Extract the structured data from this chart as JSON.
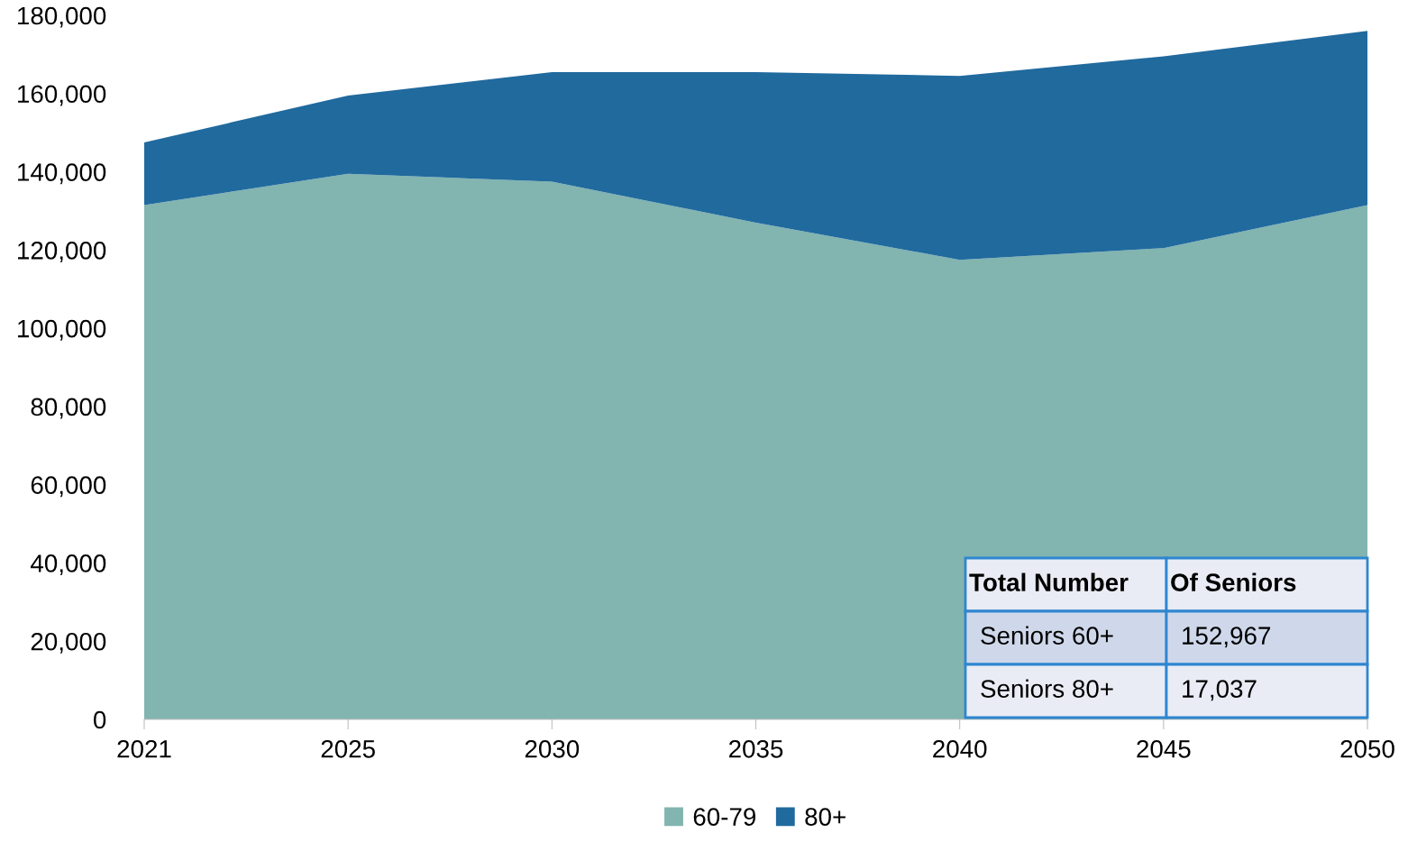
{
  "chart_data": {
    "type": "area",
    "stacked": true,
    "categories": [
      "2021",
      "2025",
      "2030",
      "2035",
      "2040",
      "2045",
      "2050"
    ],
    "series": [
      {
        "name": "60-79",
        "color": "#82b4b0",
        "values": [
          131500,
          139500,
          137500,
          127000,
          117500,
          120500,
          131500
        ]
      },
      {
        "name": "80+",
        "color": "#206a9e",
        "values": [
          16000,
          20000,
          28000,
          38500,
          47000,
          49000,
          44500
        ]
      }
    ],
    "ylim": [
      0,
      180000
    ],
    "yticks": [
      {
        "value": 0,
        "label": "0"
      },
      {
        "value": 20000,
        "label": "20,000"
      },
      {
        "value": 40000,
        "label": "40,000"
      },
      {
        "value": 60000,
        "label": "60,000"
      },
      {
        "value": 80000,
        "label": "80,000"
      },
      {
        "value": 100000,
        "label": "100,000"
      },
      {
        "value": 120000,
        "label": "120,000"
      },
      {
        "value": 140000,
        "label": "140,000"
      },
      {
        "value": 160000,
        "label": "160,000"
      },
      {
        "value": 180000,
        "label": "180,000"
      }
    ],
    "grid": false,
    "legend": "bottom",
    "annotations": [
      "Total Number",
      "Of Seniors",
      "Seniors 60+",
      "152,967",
      "Seniors 80+",
      "17,037"
    ]
  }
}
